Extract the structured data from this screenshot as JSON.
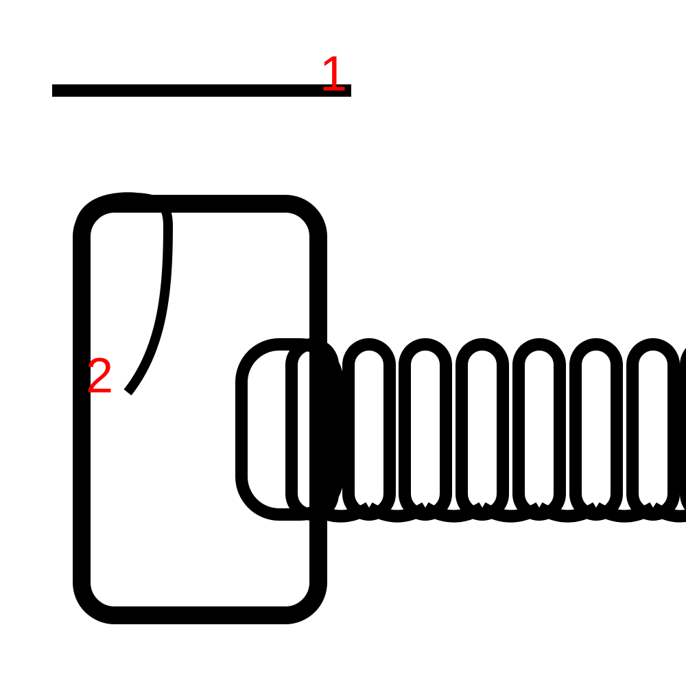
{
  "labels": {
    "one": "1",
    "two": "2"
  },
  "colors": {
    "line": "#000000",
    "label": "#ff0000",
    "background": "#ffffff"
  },
  "shapes": {
    "top_bar": "line",
    "body": "rounded-rectangle",
    "handle": "curve",
    "coil": "spring"
  }
}
